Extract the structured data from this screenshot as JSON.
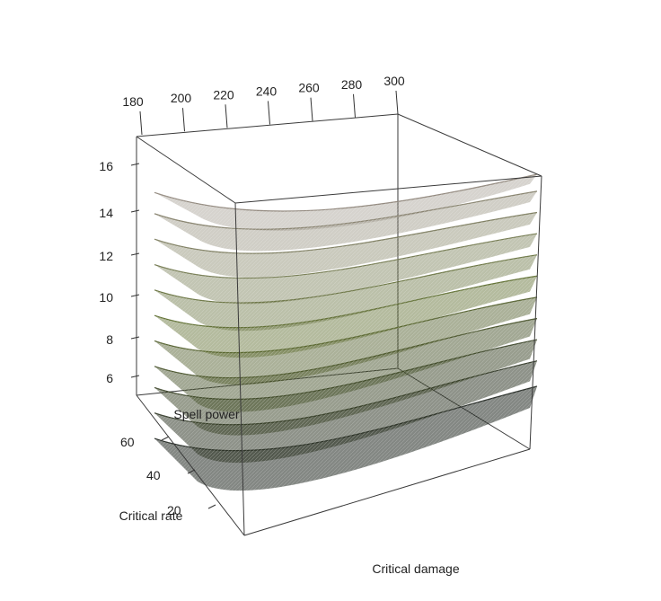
{
  "chart_data": {
    "type": "surface3d",
    "title": "",
    "xlabel": "Critical damage",
    "ylabel": "Critical rate",
    "zlabel": "Spell power",
    "x_ticks": [
      180,
      200,
      220,
      240,
      260,
      280,
      300
    ],
    "y_ticks": [
      20,
      40,
      60
    ],
    "z_ticks": [
      6,
      8,
      10,
      12,
      14,
      16
    ],
    "xlim": [
      180,
      300
    ],
    "ylim": [
      10,
      70
    ],
    "zlim": [
      4,
      17
    ],
    "series": [
      {
        "level": 1,
        "z": [
          4.6,
          6.8,
          6.0
        ]
      },
      {
        "level": 2,
        "z": [
          5.8,
          8.2,
          7.2
        ]
      },
      {
        "level": 3,
        "z": [
          7.0,
          9.4,
          8.2
        ]
      },
      {
        "level": 4,
        "z": [
          8.0,
          10.5,
          9.2
        ]
      },
      {
        "level": 5,
        "z": [
          9.2,
          11.6,
          10.2
        ]
      },
      {
        "level": 6,
        "z": [
          10.4,
          12.7,
          11.2
        ]
      },
      {
        "level": 7,
        "z": [
          11.6,
          13.7,
          12.2
        ]
      },
      {
        "level": 8,
        "z": [
          12.8,
          14.7,
          13.2
        ]
      },
      {
        "level": 9,
        "z": [
          14.0,
          15.7,
          14.2
        ]
      },
      {
        "level": 10,
        "z": [
          15.2,
          16.6,
          15.2
        ]
      },
      {
        "level": 11,
        "z": [
          16.2,
          17.0,
          16.0
        ]
      }
    ],
    "colors": {
      "low": "#1e2a1e",
      "mid": "#5a6a2a",
      "high": "#8a7f72"
    }
  }
}
